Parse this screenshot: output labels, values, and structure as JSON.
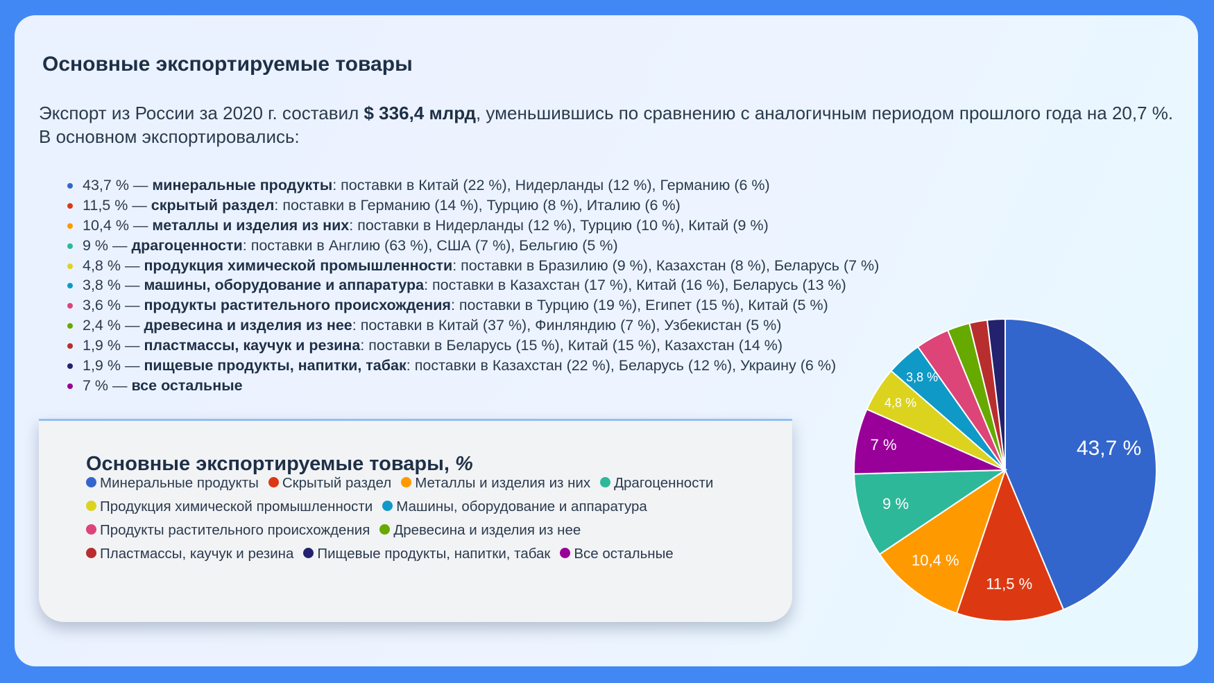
{
  "title": "Основные экспортируемые товары",
  "intro": {
    "before": "Экспорт из России за 2020 г. составил ",
    "amount": "$ 336,4 млрд",
    "after": ", уменьшившись по сравнению с аналогичным периодом прошлого года на 20,7 %. В основном экспортировались:"
  },
  "bullets": [
    {
      "pct": "43,7 % — ",
      "name": "минеральные продукты",
      "rest": ": поставки в Китай (22 %), Нидерланды (12 %), Германию (6 %)",
      "color": "#3366cc"
    },
    {
      "pct": "11,5 % — ",
      "name": "скрытый раздел",
      "rest": ": поставки в Германию (14 %), Турцию (8 %), Италию (6 %)",
      "color": "#dc3912"
    },
    {
      "pct": "10,4 % — ",
      "name": "металлы и изделия из них",
      "rest": ": поставки в Нидерланды (12 %), Турцию (10 %), Китай (9 %)",
      "color": "#ff9900"
    },
    {
      "pct": "9 % — ",
      "name": "драгоценности",
      "rest": ": поставки в Англию (63 %), США (7 %), Бельгию (5 %)",
      "color": "#2eb89a"
    },
    {
      "pct": "4,8 % — ",
      "name": "продукция химической промышленности",
      "rest": ": поставки в Бразилию (9 %), Казахстан (8 %), Беларусь (7 %)",
      "color": "#dcd31f"
    },
    {
      "pct": "3,8 % — ",
      "name": "машины, оборудование и аппаратура",
      "rest": ": поставки в Казахстан (17 %), Китай (16 %), Беларусь (13 %)",
      "color": "#0f99c6"
    },
    {
      "pct": "3,6 % — ",
      "name": "продукты растительного происхождения",
      "rest": ": поставки в Турцию (19 %), Египет (15 %), Китай (5 %)",
      "color": "#dd4477"
    },
    {
      "pct": "2,4 % — ",
      "name": "древесина и изделия из нее",
      "rest": ": поставки в Китай (37 %), Финляндию (7 %), Узбекистан (5 %)",
      "color": "#66aa00"
    },
    {
      "pct": "1,9 % — ",
      "name": "пластмассы, каучук и резина",
      "rest": ": поставки в Беларусь (15 %), Китай (15 %), Казахстан (14 %)",
      "color": "#b82e2e"
    },
    {
      "pct": "1,9 % — ",
      "name": "пищевые продукты, напитки, табак",
      "rest": ": поставки в Казахстан (22 %), Беларусь (12 %), Украину (6 %)",
      "color": "#22226e"
    },
    {
      "pct": "7 % — ",
      "name": "все остальные",
      "rest": "",
      "color": "#990099"
    }
  ],
  "chart_data": {
    "type": "pie",
    "title": "Основные экспортируемые товары, ",
    "title_unit": "%",
    "start_angle": "top, clockwise",
    "slices": [
      {
        "name": "Минеральные продукты",
        "value": 43.7,
        "label": "43,7 %",
        "color": "#3366cc"
      },
      {
        "name": "Скрытый раздел",
        "value": 11.5,
        "label": "11,5 %",
        "color": "#dc3912"
      },
      {
        "name": "Металлы и изделия из них",
        "value": 10.4,
        "label": "10,4 %",
        "color": "#ff9900"
      },
      {
        "name": "Драгоценности",
        "value": 9,
        "label": "9 %",
        "color": "#2eb89a"
      },
      {
        "name": "Все остальные",
        "value": 7,
        "label": "7 %",
        "color": "#990099"
      },
      {
        "name": "Продукция химической промышленности",
        "value": 4.8,
        "label": "4,8 %",
        "color": "#dcd31f"
      },
      {
        "name": "Машины, оборудование и аппаратура",
        "value": 3.8,
        "label": "3,8 %",
        "color": "#0f99c6"
      },
      {
        "name": "Продукты растительного происхождения",
        "value": 3.6,
        "label": "",
        "color": "#dd4477"
      },
      {
        "name": "Древесина и изделия из нее",
        "value": 2.4,
        "label": "",
        "color": "#66aa00"
      },
      {
        "name": "Пластмассы, каучук и резина",
        "value": 1.9,
        "label": "",
        "color": "#b82e2e"
      },
      {
        "name": "Пищевые продукты, напитки, табак",
        "value": 1.9,
        "label": "",
        "color": "#22226e"
      }
    ],
    "legend_rows": [
      [
        0,
        1,
        2,
        3
      ],
      [
        5,
        6
      ],
      [
        7,
        8
      ],
      [
        9,
        10,
        4
      ]
    ]
  }
}
